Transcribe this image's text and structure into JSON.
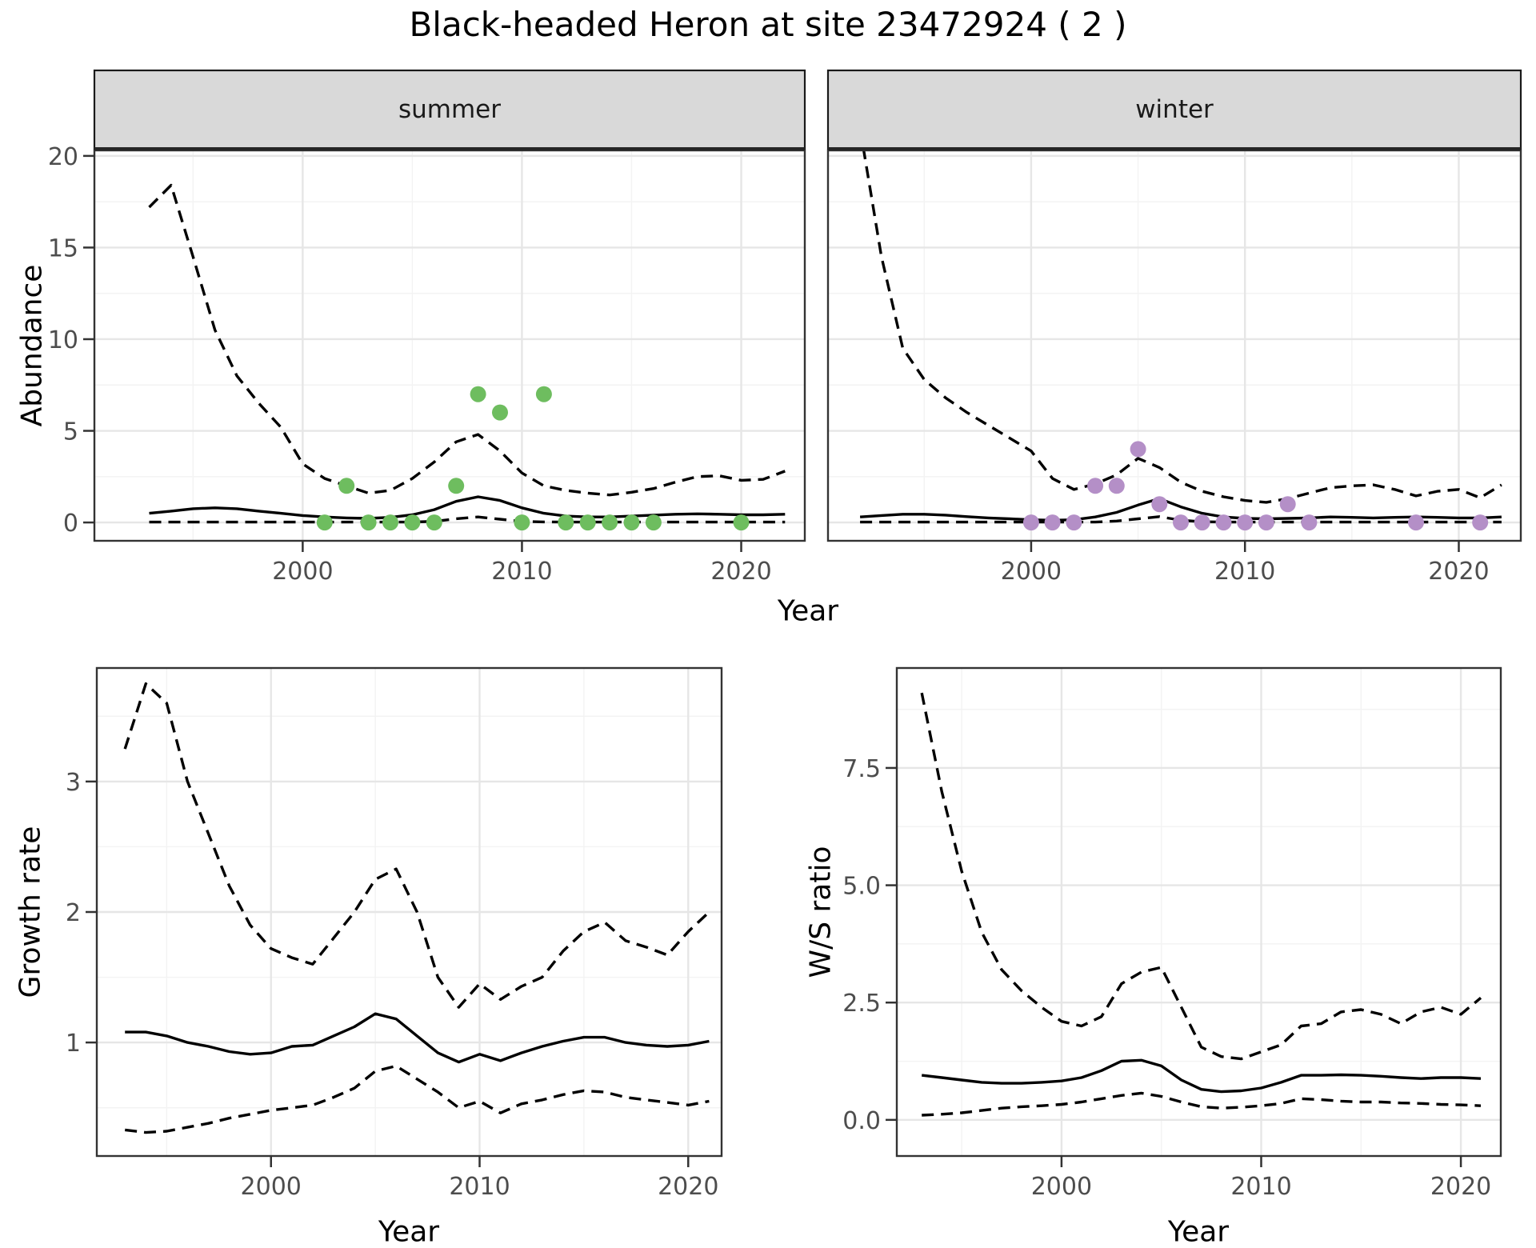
{
  "title": "Black-headed Heron at site 23472924 ( 2 )",
  "colors": {
    "background": "#ffffff",
    "panel_border": "#333333",
    "grid_major": "#e6e6e6",
    "grid_minor": "#f3f3f3",
    "strip_bg": "#d9d9d9",
    "strip_border": "#1a1a1a",
    "tick_label": "#4d4d4d",
    "line": "#000000",
    "summer_point": "#6ebd5f",
    "winter_point": "#b48fc7"
  },
  "facet_labels": {
    "summer": "summer",
    "winter": "winter"
  },
  "axis_titles": {
    "y_top": "Abundance",
    "x_top": "Year",
    "y_bottom_left": "Growth rate",
    "x_bottom_left": "Year",
    "y_bottom_right": "W/S ratio",
    "x_bottom_right": "Year"
  },
  "chart_data": [
    {
      "id": "abundance-summer",
      "type": "line",
      "facet": "summer",
      "xlabel": "Year",
      "ylabel": "Abundance",
      "grid": true,
      "legend": "none",
      "x_domain": [
        1990.5,
        2022.9
      ],
      "y_domain": [
        -1.0,
        20.3
      ],
      "x_ticks": [
        2000,
        2010,
        2020
      ],
      "x_tick_labels": [
        "2000",
        "2010",
        "2020"
      ],
      "x_minor": [
        1995,
        2005,
        2015
      ],
      "y_ticks": [
        0,
        5,
        10,
        15,
        20
      ],
      "y_tick_labels": [
        "0",
        "5",
        "10",
        "15",
        "20"
      ],
      "y_minor": [
        2.5,
        7.5,
        12.5,
        17.5
      ],
      "series": [
        {
          "key": "upper_ci",
          "name": "upper 95% CI",
          "style": "dashed",
          "x": [
            1993,
            1994,
            1995,
            1996,
            1997,
            1998,
            1999,
            2000,
            2001,
            2002,
            2003,
            2004,
            2005,
            2006,
            2007,
            2008,
            2009,
            2010,
            2011,
            2012,
            2013,
            2014,
            2015,
            2016,
            2017,
            2018,
            2019,
            2020,
            2021,
            2022
          ],
          "y": [
            17.2,
            18.4,
            14.5,
            10.5,
            8.0,
            6.5,
            5.2,
            3.2,
            2.4,
            2.0,
            1.6,
            1.75,
            2.4,
            3.3,
            4.4,
            4.8,
            3.9,
            2.7,
            2.0,
            1.75,
            1.6,
            1.5,
            1.65,
            1.85,
            2.2,
            2.5,
            2.55,
            2.3,
            2.35,
            2.8
          ]
        },
        {
          "key": "lower_ci",
          "name": "lower 95% CI",
          "style": "dashed",
          "x": [
            1993,
            1994,
            1995,
            1996,
            1997,
            1998,
            1999,
            2000,
            2001,
            2002,
            2003,
            2004,
            2005,
            2006,
            2007,
            2008,
            2009,
            2010,
            2011,
            2012,
            2013,
            2014,
            2015,
            2016,
            2017,
            2018,
            2019,
            2020,
            2021,
            2022
          ],
          "y": [
            0.02,
            0.02,
            0.02,
            0.02,
            0.02,
            0.02,
            0.02,
            0.02,
            0.02,
            0.02,
            0.02,
            0.02,
            0.02,
            0.06,
            0.2,
            0.3,
            0.18,
            0.06,
            0.03,
            0.02,
            0.02,
            0.02,
            0.02,
            0.02,
            0.02,
            0.02,
            0.02,
            0.02,
            0.02,
            0.02
          ]
        },
        {
          "key": "median",
          "name": "median",
          "style": "solid",
          "x": [
            1993,
            1994,
            1995,
            1996,
            1997,
            1998,
            1999,
            2000,
            2001,
            2002,
            2003,
            2004,
            2005,
            2006,
            2007,
            2008,
            2009,
            2010,
            2011,
            2012,
            2013,
            2014,
            2015,
            2016,
            2017,
            2018,
            2019,
            2020,
            2021,
            2022
          ],
          "y": [
            0.5,
            0.62,
            0.75,
            0.8,
            0.75,
            0.62,
            0.5,
            0.38,
            0.3,
            0.25,
            0.22,
            0.28,
            0.42,
            0.7,
            1.15,
            1.4,
            1.2,
            0.8,
            0.5,
            0.35,
            0.3,
            0.3,
            0.35,
            0.4,
            0.45,
            0.47,
            0.45,
            0.42,
            0.42,
            0.45
          ]
        }
      ],
      "points": {
        "name": "observed counts (summer)",
        "color": "#6ebd5f",
        "x": [
          2001,
          2002,
          2003,
          2004,
          2005,
          2006,
          2007,
          2008,
          2009,
          2010,
          2011,
          2012,
          2013,
          2014,
          2015,
          2016,
          2020
        ],
        "y": [
          0,
          2,
          0,
          0,
          0,
          0,
          2,
          7,
          6,
          0,
          7,
          0,
          0,
          0,
          0,
          0,
          0
        ]
      }
    },
    {
      "id": "abundance-winter",
      "type": "line",
      "facet": "winter",
      "xlabel": "Year",
      "ylabel": "Abundance",
      "grid": true,
      "legend": "none",
      "x_domain": [
        1990.5,
        2022.9
      ],
      "y_domain": [
        -1.0,
        20.3
      ],
      "x_ticks": [
        2000,
        2010,
        2020
      ],
      "x_tick_labels": [
        "2000",
        "2010",
        "2020"
      ],
      "x_minor": [
        1995,
        2005,
        2015
      ],
      "y_ticks": [
        0,
        5,
        10,
        15,
        20
      ],
      "y_tick_labels": [
        "0",
        "5",
        "10",
        "15",
        "20"
      ],
      "y_minor": [
        2.5,
        7.5,
        12.5,
        17.5
      ],
      "series": [
        {
          "key": "upper_ci",
          "name": "upper 95% CI",
          "style": "dashed",
          "x": [
            1992,
            1993,
            1994,
            1995,
            1996,
            1997,
            1998,
            1999,
            2000,
            2001,
            2002,
            2003,
            2004,
            2005,
            2006,
            2007,
            2008,
            2009,
            2010,
            2011,
            2012,
            2013,
            2014,
            2015,
            2016,
            2017,
            2018,
            2019,
            2020,
            2021,
            2022
          ],
          "y": [
            21.5,
            14.5,
            9.5,
            7.8,
            6.8,
            6.0,
            5.3,
            4.6,
            3.9,
            2.4,
            1.8,
            2.1,
            2.6,
            3.5,
            3.0,
            2.2,
            1.7,
            1.4,
            1.2,
            1.1,
            1.3,
            1.6,
            1.9,
            2.0,
            2.05,
            1.8,
            1.45,
            1.7,
            1.8,
            1.35,
            2.05
          ]
        },
        {
          "key": "lower_ci",
          "name": "lower 95% CI",
          "style": "dashed",
          "x": [
            1992,
            1993,
            1994,
            1995,
            1996,
            1997,
            1998,
            1999,
            2000,
            2001,
            2002,
            2003,
            2004,
            2005,
            2006,
            2007,
            2008,
            2009,
            2010,
            2011,
            2012,
            2013,
            2014,
            2015,
            2016,
            2017,
            2018,
            2019,
            2020,
            2021,
            2022
          ],
          "y": [
            0.02,
            0.02,
            0.02,
            0.02,
            0.02,
            0.02,
            0.02,
            0.02,
            0.02,
            0.02,
            0.02,
            0.02,
            0.08,
            0.2,
            0.32,
            0.12,
            0.04,
            0.02,
            0.02,
            0.02,
            0.02,
            0.02,
            0.02,
            0.02,
            0.02,
            0.02,
            0.02,
            0.02,
            0.02,
            0.02,
            0.02
          ]
        },
        {
          "key": "median",
          "name": "median",
          "style": "solid",
          "x": [
            1992,
            1993,
            1994,
            1995,
            1996,
            1997,
            1998,
            1999,
            2000,
            2001,
            2002,
            2003,
            2004,
            2005,
            2006,
            2007,
            2008,
            2009,
            2010,
            2011,
            2012,
            2013,
            2014,
            2015,
            2016,
            2017,
            2018,
            2019,
            2020,
            2021,
            2022
          ],
          "y": [
            0.3,
            0.38,
            0.45,
            0.45,
            0.4,
            0.32,
            0.25,
            0.2,
            0.15,
            0.12,
            0.15,
            0.3,
            0.55,
            0.95,
            1.3,
            0.85,
            0.5,
            0.3,
            0.22,
            0.2,
            0.22,
            0.25,
            0.3,
            0.28,
            0.25,
            0.28,
            0.3,
            0.28,
            0.25,
            0.25,
            0.3
          ]
        }
      ],
      "points": {
        "name": "observed counts (winter)",
        "color": "#b48fc7",
        "x": [
          2000,
          2001,
          2002,
          2003,
          2004,
          2005,
          2006,
          2007,
          2008,
          2009,
          2010,
          2011,
          2012,
          2013,
          2018,
          2021
        ],
        "y": [
          0,
          0,
          0,
          2,
          2,
          4,
          1,
          0,
          0,
          0,
          0,
          0,
          1,
          0,
          0,
          0
        ]
      }
    },
    {
      "id": "growth-rate",
      "type": "line",
      "facet": null,
      "xlabel": "Year",
      "ylabel": "Growth rate",
      "grid": true,
      "legend": "none",
      "x_domain": [
        1991.65,
        2021.6
      ],
      "y_domain": [
        0.13,
        3.87
      ],
      "x_ticks": [
        2000,
        2010,
        2020
      ],
      "x_tick_labels": [
        "2000",
        "2010",
        "2020"
      ],
      "x_minor": [
        1995,
        2005,
        2015
      ],
      "y_ticks": [
        1,
        2,
        3
      ],
      "y_tick_labels": [
        "1",
        "2",
        "3"
      ],
      "y_minor": [
        0.5,
        1.5,
        2.5,
        3.5
      ],
      "series": [
        {
          "key": "upper_ci",
          "name": "upper 95% CI",
          "style": "dashed",
          "x": [
            1993,
            1994,
            1995,
            1996,
            1997,
            1998,
            1999,
            2000,
            2001,
            2002,
            2003,
            2004,
            2005,
            2006,
            2007,
            2008,
            2009,
            2010,
            2011,
            2012,
            2013,
            2014,
            2015,
            2016,
            2017,
            2018,
            2019,
            2020,
            2021
          ],
          "y": [
            3.25,
            3.75,
            3.6,
            3.0,
            2.6,
            2.2,
            1.9,
            1.72,
            1.65,
            1.6,
            1.8,
            2.0,
            2.25,
            2.33,
            2.0,
            1.5,
            1.27,
            1.45,
            1.33,
            1.43,
            1.5,
            1.7,
            1.85,
            1.92,
            1.78,
            1.73,
            1.67,
            1.85,
            2.0
          ]
        },
        {
          "key": "lower_ci",
          "name": "lower 95% CI",
          "style": "dashed",
          "x": [
            1993,
            1994,
            1995,
            1996,
            1997,
            1998,
            1999,
            2000,
            2001,
            2002,
            2003,
            2004,
            2005,
            2006,
            2007,
            2008,
            2009,
            2010,
            2011,
            2012,
            2013,
            2014,
            2015,
            2016,
            2017,
            2018,
            2019,
            2020,
            2021
          ],
          "y": [
            0.33,
            0.31,
            0.32,
            0.35,
            0.38,
            0.42,
            0.45,
            0.48,
            0.5,
            0.52,
            0.58,
            0.65,
            0.78,
            0.82,
            0.72,
            0.62,
            0.5,
            0.55,
            0.46,
            0.53,
            0.56,
            0.6,
            0.63,
            0.62,
            0.58,
            0.56,
            0.54,
            0.52,
            0.55
          ]
        },
        {
          "key": "median",
          "name": "median",
          "style": "solid",
          "x": [
            1993,
            1994,
            1995,
            1996,
            1997,
            1998,
            1999,
            2000,
            2001,
            2002,
            2003,
            2004,
            2005,
            2006,
            2007,
            2008,
            2009,
            2010,
            2011,
            2012,
            2013,
            2014,
            2015,
            2016,
            2017,
            2018,
            2019,
            2020,
            2021
          ],
          "y": [
            1.08,
            1.08,
            1.05,
            1.0,
            0.97,
            0.93,
            0.91,
            0.92,
            0.97,
            0.98,
            1.05,
            1.12,
            1.22,
            1.18,
            1.05,
            0.92,
            0.85,
            0.91,
            0.86,
            0.92,
            0.97,
            1.01,
            1.04,
            1.04,
            1.0,
            0.98,
            0.97,
            0.98,
            1.01
          ]
        }
      ],
      "points": null
    },
    {
      "id": "ws-ratio",
      "type": "line",
      "facet": null,
      "xlabel": "Year",
      "ylabel": "W/S ratio",
      "grid": true,
      "legend": "none",
      "x_domain": [
        1991.75,
        2022.0
      ],
      "y_domain": [
        -0.77,
        9.63
      ],
      "x_ticks": [
        2000,
        2010,
        2020
      ],
      "x_tick_labels": [
        "2000",
        "2010",
        "2020"
      ],
      "x_minor": [
        1995,
        2005,
        2015
      ],
      "y_ticks": [
        0.0,
        2.5,
        5.0,
        7.5
      ],
      "y_tick_labels": [
        "0.0",
        "2.5",
        "5.0",
        "7.5"
      ],
      "y_minor": [
        1.25,
        3.75,
        6.25,
        8.75
      ],
      "series": [
        {
          "key": "upper_ci",
          "name": "upper 95% CI",
          "style": "dashed",
          "x": [
            1993,
            1994,
            1995,
            1996,
            1997,
            1998,
            1999,
            2000,
            2001,
            2002,
            2003,
            2004,
            2005,
            2006,
            2007,
            2008,
            2009,
            2010,
            2011,
            2012,
            2013,
            2014,
            2015,
            2016,
            2017,
            2018,
            2019,
            2020,
            2021
          ],
          "y": [
            9.1,
            7.0,
            5.3,
            4.0,
            3.2,
            2.75,
            2.4,
            2.1,
            2.0,
            2.2,
            2.9,
            3.15,
            3.25,
            2.4,
            1.55,
            1.35,
            1.3,
            1.45,
            1.6,
            2.0,
            2.05,
            2.3,
            2.35,
            2.25,
            2.05,
            2.3,
            2.4,
            2.25,
            2.6
          ]
        },
        {
          "key": "lower_ci",
          "name": "lower 95% CI",
          "style": "dashed",
          "x": [
            1993,
            1994,
            1995,
            1996,
            1997,
            1998,
            1999,
            2000,
            2001,
            2002,
            2003,
            2004,
            2005,
            2006,
            2007,
            2008,
            2009,
            2010,
            2011,
            2012,
            2013,
            2014,
            2015,
            2016,
            2017,
            2018,
            2019,
            2020,
            2021
          ],
          "y": [
            0.1,
            0.12,
            0.15,
            0.2,
            0.25,
            0.28,
            0.3,
            0.33,
            0.38,
            0.45,
            0.52,
            0.57,
            0.5,
            0.38,
            0.28,
            0.25,
            0.27,
            0.3,
            0.35,
            0.45,
            0.43,
            0.4,
            0.38,
            0.38,
            0.36,
            0.35,
            0.33,
            0.32,
            0.3
          ]
        },
        {
          "key": "median",
          "name": "median",
          "style": "solid",
          "x": [
            1993,
            1994,
            1995,
            1996,
            1997,
            1998,
            1999,
            2000,
            2001,
            2002,
            2003,
            2004,
            2005,
            2006,
            2007,
            2008,
            2009,
            2010,
            2011,
            2012,
            2013,
            2014,
            2015,
            2016,
            2017,
            2018,
            2019,
            2020,
            2021
          ],
          "y": [
            0.95,
            0.9,
            0.85,
            0.8,
            0.78,
            0.78,
            0.8,
            0.83,
            0.9,
            1.05,
            1.25,
            1.27,
            1.15,
            0.85,
            0.65,
            0.6,
            0.62,
            0.68,
            0.8,
            0.95,
            0.95,
            0.96,
            0.95,
            0.93,
            0.9,
            0.88,
            0.9,
            0.9,
            0.88
          ]
        }
      ],
      "points": null
    }
  ]
}
